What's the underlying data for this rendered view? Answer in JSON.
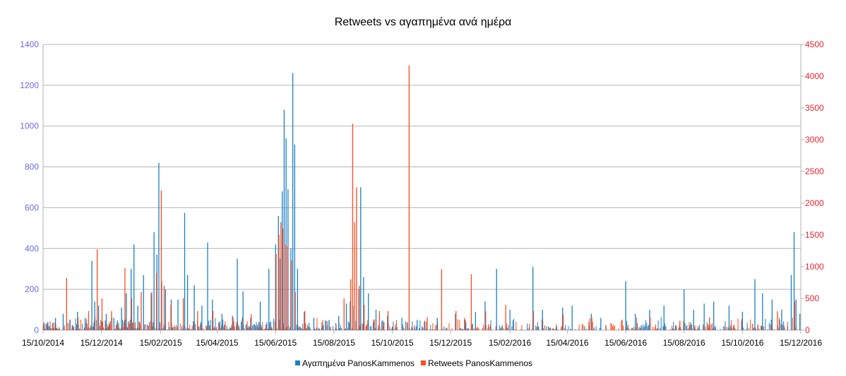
{
  "chart_data": {
    "type": "bar",
    "title": "Retweets vs αγαπημένα ανά ημέρα",
    "xlabel": "",
    "ylabel": "",
    "x_ticks": [
      "15/10/2014",
      "15/12/2014",
      "15/02/2015",
      "15/04/2015",
      "15/06/2015",
      "15/08/2015",
      "15/10/2015",
      "15/12/2015",
      "15/02/2016",
      "15/04/2016",
      "15/06/2016",
      "15/08/2016",
      "15/10/2016",
      "15/12/2016"
    ],
    "x_start": "2014-10-15",
    "x_end": "2016-12-15",
    "y_left": {
      "min": 0,
      "max": 1400,
      "ticks": [
        "0",
        "200",
        "400",
        "600",
        "800",
        "1000",
        "1200",
        "1400"
      ]
    },
    "y_right": {
      "min": 0,
      "max": 4500,
      "ticks": [
        "0",
        "500",
        "1000",
        "1500",
        "2000",
        "2500",
        "3000",
        "3500",
        "4000",
        "4500"
      ]
    },
    "grid": true,
    "legend_position": "bottom",
    "series": [
      {
        "name": "Αγαπημένα PanosKammenos",
        "color": "#1a80c4",
        "axis": "left",
        "points": [
          [
            "2014-10-20",
            40
          ],
          [
            "2014-10-28",
            60
          ],
          [
            "2014-11-05",
            80
          ],
          [
            "2014-11-12",
            50
          ],
          [
            "2014-11-20",
            90
          ],
          [
            "2014-11-28",
            60
          ],
          [
            "2014-12-05",
            340
          ],
          [
            "2014-12-08",
            140
          ],
          [
            "2014-12-12",
            120
          ],
          [
            "2014-12-20",
            80
          ],
          [
            "2014-12-28",
            60
          ],
          [
            "2015-01-05",
            110
          ],
          [
            "2015-01-10",
            180
          ],
          [
            "2015-01-15",
            300
          ],
          [
            "2015-01-18",
            420
          ],
          [
            "2015-01-22",
            120
          ],
          [
            "2015-01-28",
            270
          ],
          [
            "2015-02-05",
            180
          ],
          [
            "2015-02-08",
            480
          ],
          [
            "2015-02-11",
            370
          ],
          [
            "2015-02-13",
            820
          ],
          [
            "2015-02-16",
            240
          ],
          [
            "2015-02-20",
            200
          ],
          [
            "2015-02-26",
            150
          ],
          [
            "2015-03-05",
            150
          ],
          [
            "2015-03-12",
            575
          ],
          [
            "2015-03-15",
            270
          ],
          [
            "2015-03-22",
            220
          ],
          [
            "2015-03-30",
            120
          ],
          [
            "2015-04-05",
            430
          ],
          [
            "2015-04-10",
            150
          ],
          [
            "2015-04-20",
            80
          ],
          [
            "2015-05-01",
            70
          ],
          [
            "2015-05-06",
            350
          ],
          [
            "2015-05-12",
            190
          ],
          [
            "2015-05-20",
            60
          ],
          [
            "2015-05-30",
            140
          ],
          [
            "2015-06-08",
            300
          ],
          [
            "2015-06-15",
            420
          ],
          [
            "2015-06-18",
            560
          ],
          [
            "2015-06-20",
            350
          ],
          [
            "2015-06-22",
            680
          ],
          [
            "2015-06-24",
            1080
          ],
          [
            "2015-06-26",
            940
          ],
          [
            "2015-06-28",
            690
          ],
          [
            "2015-07-01",
            400
          ],
          [
            "2015-07-03",
            1260
          ],
          [
            "2015-07-05",
            910
          ],
          [
            "2015-07-08",
            300
          ],
          [
            "2015-07-15",
            90
          ],
          [
            "2015-07-25",
            60
          ],
          [
            "2015-08-10",
            50
          ],
          [
            "2015-08-20",
            70
          ],
          [
            "2015-08-28",
            130
          ],
          [
            "2015-09-01",
            140
          ],
          [
            "2015-09-04",
            120
          ],
          [
            "2015-09-10",
            200
          ],
          [
            "2015-09-12",
            700
          ],
          [
            "2015-09-15",
            260
          ],
          [
            "2015-09-20",
            180
          ],
          [
            "2015-09-28",
            100
          ],
          [
            "2015-10-10",
            70
          ],
          [
            "2015-10-25",
            60
          ],
          [
            "2015-11-10",
            50
          ],
          [
            "2015-12-01",
            60
          ],
          [
            "2015-12-20",
            80
          ],
          [
            "2016-01-10",
            90
          ],
          [
            "2016-01-20",
            140
          ],
          [
            "2016-02-01",
            300
          ],
          [
            "2016-02-15",
            100
          ],
          [
            "2016-03-10",
            310
          ],
          [
            "2016-03-20",
            100
          ],
          [
            "2016-04-10",
            110
          ],
          [
            "2016-04-20",
            120
          ],
          [
            "2016-05-10",
            80
          ],
          [
            "2016-05-20",
            60
          ],
          [
            "2016-06-15",
            240
          ],
          [
            "2016-06-25",
            80
          ],
          [
            "2016-07-10",
            100
          ],
          [
            "2016-07-25",
            120
          ],
          [
            "2016-08-15",
            200
          ],
          [
            "2016-08-25",
            100
          ],
          [
            "2016-09-05",
            130
          ],
          [
            "2016-09-15",
            140
          ],
          [
            "2016-10-01",
            120
          ],
          [
            "2016-10-15",
            90
          ],
          [
            "2016-10-28",
            250
          ],
          [
            "2016-11-05",
            180
          ],
          [
            "2016-11-15",
            150
          ],
          [
            "2016-11-25",
            100
          ],
          [
            "2016-12-05",
            270
          ],
          [
            "2016-12-08",
            480
          ],
          [
            "2016-12-10",
            150
          ],
          [
            "2016-12-14",
            80
          ]
        ]
      },
      {
        "name": "Retweets PanosKammenos",
        "color": "#ff4a1c",
        "axis": "right",
        "points": [
          [
            "2014-10-15",
            100
          ],
          [
            "2014-10-25",
            120
          ],
          [
            "2014-11-08",
            820
          ],
          [
            "2014-11-20",
            200
          ],
          [
            "2014-12-01",
            300
          ],
          [
            "2014-12-10",
            1270
          ],
          [
            "2014-12-15",
            500
          ],
          [
            "2014-12-25",
            300
          ],
          [
            "2015-01-08",
            980
          ],
          [
            "2015-01-15",
            500
          ],
          [
            "2015-01-25",
            600
          ],
          [
            "2015-02-05",
            600
          ],
          [
            "2015-02-10",
            900
          ],
          [
            "2015-02-15",
            2200
          ],
          [
            "2015-02-18",
            700
          ],
          [
            "2015-02-25",
            400
          ],
          [
            "2015-03-10",
            500
          ],
          [
            "2015-03-25",
            300
          ],
          [
            "2015-04-10",
            300
          ],
          [
            "2015-05-01",
            200
          ],
          [
            "2015-05-20",
            250
          ],
          [
            "2015-06-15",
            1200
          ],
          [
            "2015-06-18",
            1500
          ],
          [
            "2015-06-20",
            1700
          ],
          [
            "2015-06-22",
            1600
          ],
          [
            "2015-06-25",
            1350
          ],
          [
            "2015-06-27",
            1320
          ],
          [
            "2015-07-01",
            1100
          ],
          [
            "2015-07-05",
            600
          ],
          [
            "2015-07-15",
            300
          ],
          [
            "2015-08-25",
            500
          ],
          [
            "2015-09-01",
            800
          ],
          [
            "2015-09-03",
            3250
          ],
          [
            "2015-09-05",
            1700
          ],
          [
            "2015-09-07",
            2250
          ],
          [
            "2015-09-10",
            700
          ],
          [
            "2015-09-15",
            400
          ],
          [
            "2015-10-01",
            300
          ],
          [
            "2015-10-10",
            300
          ],
          [
            "2015-11-01",
            4170
          ],
          [
            "2015-11-20",
            200
          ],
          [
            "2015-12-05",
            960
          ],
          [
            "2015-12-20",
            300
          ],
          [
            "2016-01-05",
            880
          ],
          [
            "2016-01-20",
            300
          ],
          [
            "2016-02-10",
            400
          ],
          [
            "2016-03-10",
            300
          ],
          [
            "2016-04-10",
            250
          ],
          [
            "2016-05-10",
            200
          ],
          [
            "2016-06-10",
            150
          ],
          [
            "2016-07-10",
            200
          ],
          [
            "2016-08-10",
            150
          ],
          [
            "2016-09-10",
            200
          ],
          [
            "2016-10-25",
            100
          ],
          [
            "2016-11-20",
            300
          ],
          [
            "2016-12-08",
            450
          ]
        ]
      }
    ],
    "noise_seed": 7
  }
}
